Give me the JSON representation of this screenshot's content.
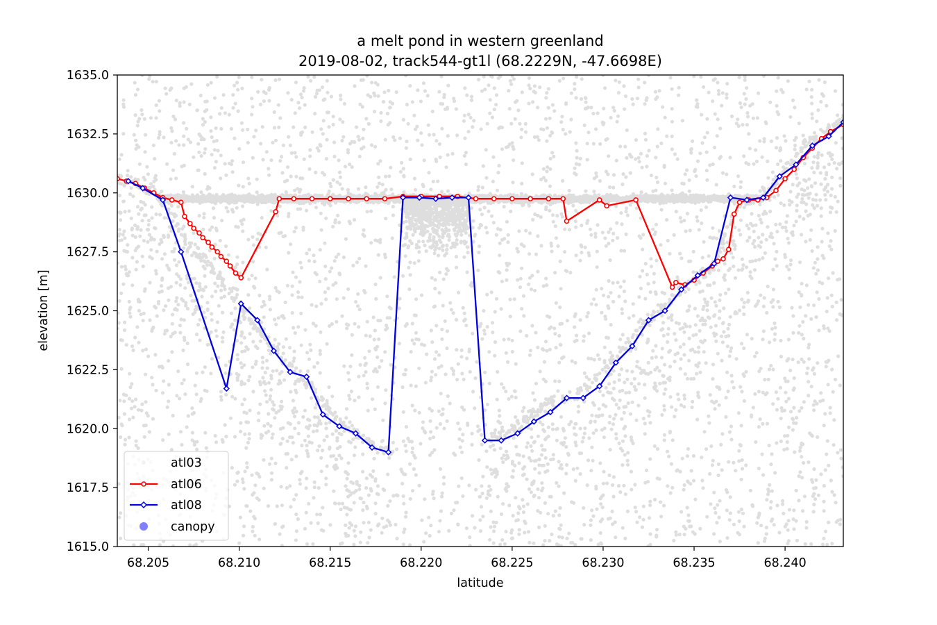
{
  "chart_data": {
    "type": "scatter",
    "title": "a melt pond in western greenland",
    "subtitle": "2019-08-02, track544-gt1l (68.2229N, -47.6698E)",
    "xlabel": "latitude",
    "ylabel": "elevation [m]",
    "xlim": [
      68.2033,
      68.2432
    ],
    "ylim": [
      1615.0,
      1635.0
    ],
    "xticks": [
      68.205,
      68.21,
      68.215,
      68.22,
      68.225,
      68.23,
      68.235,
      68.24
    ],
    "xtick_labels": [
      "68.205",
      "68.210",
      "68.215",
      "68.220",
      "68.225",
      "68.230",
      "68.235",
      "68.240"
    ],
    "yticks": [
      1615.0,
      1617.5,
      1620.0,
      1622.5,
      1625.0,
      1627.5,
      1630.0,
      1632.5,
      1635.0
    ],
    "ytick_labels": [
      "1615.0",
      "1617.5",
      "1620.0",
      "1622.5",
      "1625.0",
      "1627.5",
      "1630.0",
      "1632.5",
      "1635.0"
    ],
    "grid": false,
    "legend_position": "lower-left",
    "series": [
      {
        "name": "atl03",
        "kind": "scatter",
        "color": "#000000",
        "description": "dense photon cloud: background noise everywhere, concentrated along the water surface (~1629.7 m) and the lake bed/ice surface",
        "surface_profile": {
          "x": [
            68.2033,
            68.2045,
            68.2055,
            68.2062,
            68.2068,
            68.2078,
            68.209,
            68.21,
            68.212,
            68.214,
            68.2155,
            68.217,
            68.218,
            68.2185,
            68.2225,
            68.223,
            68.2235,
            68.225,
            68.227,
            68.229,
            68.231,
            68.233,
            68.2348,
            68.2362,
            68.2368,
            68.2375,
            68.238,
            68.2385,
            68.239,
            68.24,
            68.241,
            68.2432
          ],
          "y": [
            1630.7,
            1630.3,
            1629.9,
            1629.3,
            1628.2,
            1627.4,
            1626.3,
            1625.2,
            1623.3,
            1621.7,
            1620.3,
            1619.5,
            1619.1,
            1619.0,
            1619.2,
            1619.3,
            1619.4,
            1620.0,
            1621.1,
            1621.6,
            1623.4,
            1625.0,
            1626.2,
            1627.0,
            1628.5,
            1629.6,
            1629.7,
            1629.8,
            1630.0,
            1630.9,
            1631.9,
            1633.2
          ]
        },
        "water_surface": {
          "x_range": [
            68.2055,
            68.2388
          ],
          "y": 1629.75
        },
        "data_gap": [
          68.2185,
          68.2232
        ]
      },
      {
        "name": "atl06",
        "kind": "line",
        "color": "#ff0000",
        "marker": "circle",
        "x": [
          68.2033,
          68.2038,
          68.2043,
          68.2048,
          68.2053,
          68.2058,
          68.2063,
          68.2068,
          68.207,
          68.2073,
          68.2075,
          68.2078,
          68.208,
          68.2083,
          68.2085,
          68.2088,
          68.209,
          68.2093,
          68.2095,
          68.2098,
          68.2101,
          68.212,
          68.2122,
          68.213,
          68.214,
          68.215,
          68.216,
          68.217,
          68.218,
          68.219,
          68.22,
          68.221,
          68.222,
          68.223,
          68.224,
          68.225,
          68.226,
          68.227,
          68.2278,
          68.228,
          68.2298,
          68.2302,
          68.2318,
          68.2338,
          68.234,
          68.2345,
          68.235,
          68.2355,
          68.236,
          68.2363,
          68.2366,
          68.2369,
          68.2372,
          68.2375,
          68.238,
          68.2385,
          68.239,
          68.2395,
          68.24,
          68.2405,
          68.241,
          68.2415,
          68.242,
          68.2425,
          68.2432
        ],
        "y": [
          1630.6,
          1630.5,
          1630.4,
          1630.2,
          1630.0,
          1629.8,
          1629.7,
          1629.6,
          1629.0,
          1628.7,
          1628.5,
          1628.3,
          1628.1,
          1627.9,
          1627.7,
          1627.5,
          1627.3,
          1627.1,
          1626.9,
          1626.6,
          1626.4,
          1629.2,
          1629.75,
          1629.75,
          1629.75,
          1629.75,
          1629.75,
          1629.75,
          1629.75,
          1629.85,
          1629.85,
          1629.85,
          1629.85,
          1629.75,
          1629.75,
          1629.75,
          1629.75,
          1629.75,
          1629.75,
          1628.8,
          1629.7,
          1629.45,
          1629.7,
          1626.0,
          1626.2,
          1626.1,
          1626.3,
          1626.6,
          1626.9,
          1627.1,
          1627.2,
          1627.6,
          1629.1,
          1629.6,
          1629.7,
          1629.7,
          1629.8,
          1630.1,
          1630.6,
          1631.0,
          1631.5,
          1631.9,
          1632.3,
          1632.6,
          1632.9
        ]
      },
      {
        "name": "atl08",
        "kind": "line",
        "color": "#0000dd",
        "marker": "diamond",
        "x": [
          68.2039,
          68.2047,
          68.2058,
          68.2068,
          68.2093,
          68.2101,
          68.211,
          68.2119,
          68.2128,
          68.2137,
          68.2146,
          68.2155,
          68.2164,
          68.2173,
          68.2182,
          68.219,
          68.2199,
          68.2208,
          68.2217,
          68.2226,
          68.2235,
          68.2244,
          68.2253,
          68.2262,
          68.2271,
          68.228,
          68.2289,
          68.2298,
          68.2307,
          68.2316,
          68.2325,
          68.2334,
          68.2343,
          68.2352,
          68.2361,
          68.237,
          68.2379,
          68.2388,
          68.2397,
          68.2406,
          68.2415,
          68.2424,
          68.2432
        ],
        "y": [
          1630.5,
          1630.2,
          1629.7,
          1627.5,
          1621.7,
          1625.3,
          1624.6,
          1623.3,
          1622.4,
          1622.2,
          1620.6,
          1620.1,
          1619.8,
          1619.2,
          1619.0,
          1629.8,
          1629.8,
          1629.75,
          1629.8,
          1629.8,
          1619.5,
          1619.5,
          1619.8,
          1620.3,
          1620.7,
          1621.3,
          1621.3,
          1621.8,
          1622.8,
          1623.5,
          1624.6,
          1625.0,
          1625.9,
          1626.5,
          1627.0,
          1629.8,
          1629.7,
          1629.8,
          1630.7,
          1631.2,
          1632.0,
          1632.4,
          1633.0
        ]
      },
      {
        "name": "canopy",
        "kind": "scatter",
        "color": "#7f7fff",
        "x": [],
        "y": []
      }
    ]
  }
}
